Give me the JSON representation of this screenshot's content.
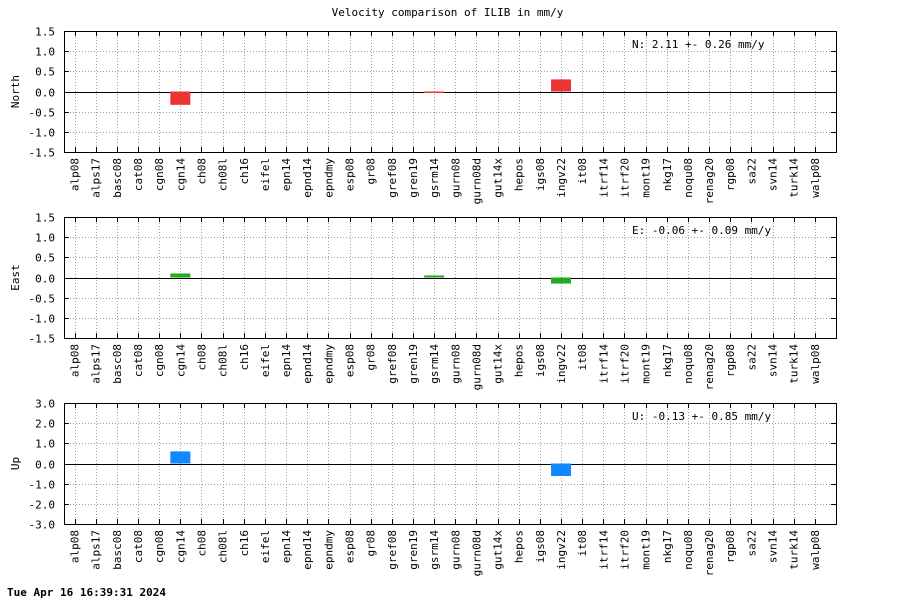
{
  "title": "Velocity comparison of ILIB in mm/y",
  "timestamp": "Tue Apr 16 16:39:31 2024",
  "chart_data": [
    {
      "type": "bar",
      "ylabel": "North",
      "ylim": [
        -1.5,
        1.5
      ],
      "yticks": [
        1.5,
        1.0,
        0.5,
        0.0,
        -0.5,
        -1.0,
        -1.5
      ],
      "grid": true,
      "color": "#ee3333",
      "annotation": "N:   2.11 +-  0.26 mm/y",
      "categories": [
        "alp08",
        "alps17",
        "basc08",
        "cat08",
        "cgn08",
        "cgn14",
        "ch08",
        "ch08l",
        "ch16",
        "eifel",
        "epn14",
        "epnd14",
        "epndmy",
        "esp08",
        "gr08",
        "gref08",
        "gren19",
        "gsrm14",
        "gurn08",
        "gurn08d",
        "gut14x",
        "hepos",
        "igs08",
        "ingv22",
        "it08",
        "itrf14",
        "itrf20",
        "mont19",
        "nkg17",
        "noqu08",
        "renag20",
        "rgp08",
        "sa22",
        "svn14",
        "turk14",
        "walp08"
      ],
      "values": [
        0,
        0,
        0,
        0,
        0,
        -0.33,
        0,
        0,
        0,
        0,
        0,
        0,
        0,
        0,
        0,
        0,
        0,
        -0.02,
        0,
        0,
        0,
        0,
        0,
        0.3,
        0,
        0,
        0,
        0,
        0,
        0,
        0,
        0,
        0,
        0,
        0,
        0
      ]
    },
    {
      "type": "bar",
      "ylabel": "East",
      "ylim": [
        -1.5,
        1.5
      ],
      "yticks": [
        1.5,
        1.0,
        0.5,
        0.0,
        -0.5,
        -1.0,
        -1.5
      ],
      "grid": true,
      "color": "#22aa22",
      "annotation": "E:  -0.06 +-  0.09 mm/y",
      "categories": [
        "alp08",
        "alps17",
        "basc08",
        "cat08",
        "cgn08",
        "cgn14",
        "ch08",
        "ch08l",
        "ch16",
        "eifel",
        "epn14",
        "epnd14",
        "epndmy",
        "esp08",
        "gr08",
        "gref08",
        "gren19",
        "gsrm14",
        "gurn08",
        "gurn08d",
        "gut14x",
        "hepos",
        "igs08",
        "ingv22",
        "it08",
        "itrf14",
        "itrf20",
        "mont19",
        "nkg17",
        "noqu08",
        "renag20",
        "rgp08",
        "sa22",
        "svn14",
        "turk14",
        "walp08"
      ],
      "values": [
        0,
        0,
        0,
        0,
        0,
        0.1,
        0,
        0,
        0,
        0,
        0,
        0,
        0,
        0,
        0,
        0,
        0,
        0.05,
        0,
        0,
        0,
        0,
        0,
        -0.15,
        0,
        0,
        0,
        0,
        0,
        0,
        0,
        0,
        0,
        0,
        0,
        0
      ]
    },
    {
      "type": "bar",
      "ylabel": "Up",
      "ylim": [
        -3.0,
        3.0
      ],
      "yticks": [
        3.0,
        2.0,
        1.0,
        0.0,
        -1.0,
        -2.0,
        -3.0
      ],
      "grid": true,
      "color": "#1188ff",
      "annotation": "U:  -0.13 +-  0.85 mm/y",
      "categories": [
        "alp08",
        "alps17",
        "basc08",
        "cat08",
        "cgn08",
        "cgn14",
        "ch08",
        "ch08l",
        "ch16",
        "eifel",
        "epn14",
        "epnd14",
        "epndmy",
        "esp08",
        "gr08",
        "gref08",
        "gren19",
        "gsrm14",
        "gurn08",
        "gurn08d",
        "gut14x",
        "hepos",
        "igs08",
        "ingv22",
        "it08",
        "itrf14",
        "itrf20",
        "mont19",
        "nkg17",
        "noqu08",
        "renag20",
        "rgp08",
        "sa22",
        "svn14",
        "turk14",
        "walp08"
      ],
      "values": [
        0,
        0,
        0,
        0,
        0,
        0.6,
        0,
        0,
        0,
        0,
        0,
        0,
        0,
        0,
        0,
        0,
        0,
        0,
        0,
        0,
        0,
        0,
        0,
        -0.62,
        0,
        0,
        0,
        0,
        0,
        0,
        0,
        0,
        0,
        0,
        0,
        0
      ]
    }
  ]
}
